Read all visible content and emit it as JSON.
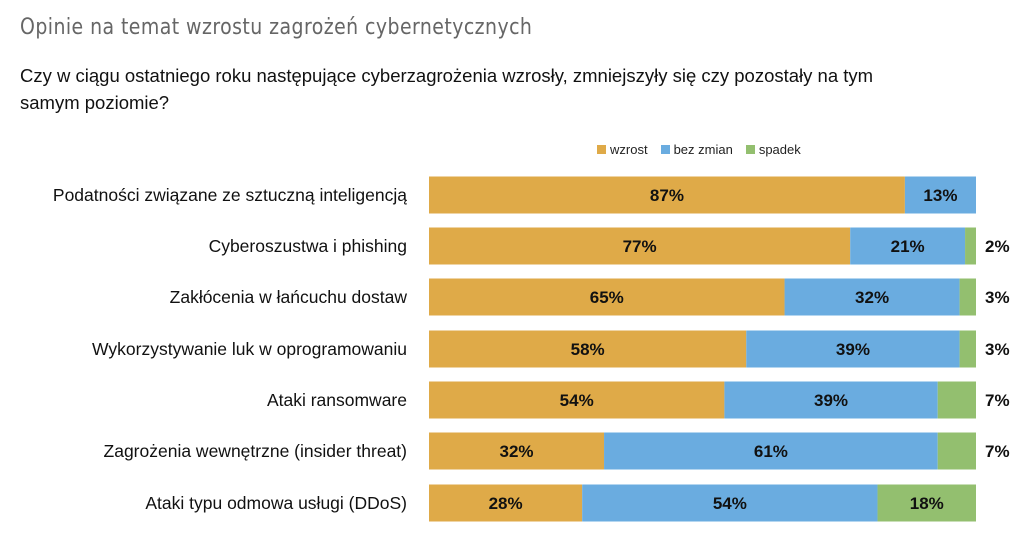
{
  "title": "Opinie na temat wzrostu zagrożeń cybernetycznych",
  "question": "Czy w ciągu ostatniego roku następujące cyberzagrożenia wzrosły, zmniejszyły się czy pozostały na tym samym poziomie?",
  "chart_data": {
    "type": "bar",
    "orientation": "horizontal",
    "stacked": true,
    "legend_position": "top",
    "grid": false,
    "xlim": [
      0,
      100
    ],
    "unit": "%",
    "categories": [
      "Podatności związane ze sztuczną inteligencją",
      "Cyberoszustwa i phishing",
      "Zakłócenia w łańcuchu dostaw",
      "Wykorzystywanie luk w oprogramowaniu",
      "Ataki ransomware",
      "Zagrożenia wewnętrzne (insider threat)",
      "Ataki typu odmowa usługi (DDoS)"
    ],
    "series": [
      {
        "name": "wzrost",
        "color": "#dfaa48",
        "values": [
          87,
          77,
          65,
          58,
          54,
          32,
          28
        ]
      },
      {
        "name": "bez zmian",
        "color": "#6aace0",
        "values": [
          13,
          21,
          32,
          39,
          39,
          61,
          54
        ]
      },
      {
        "name": "spadek",
        "color": "#93bf6f",
        "values": [
          0,
          2,
          3,
          3,
          7,
          7,
          18
        ]
      }
    ]
  }
}
